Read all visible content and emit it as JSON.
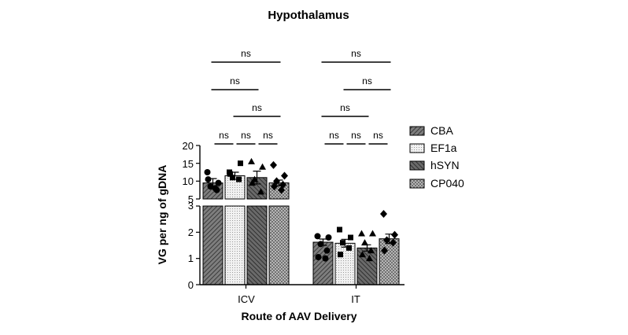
{
  "chart_data": {
    "type": "bar",
    "title": "Hypothalamus",
    "xlabel": "Route of AAV Delivery",
    "ylabel": "VG per ng of gDNA",
    "categories": [
      "ICV",
      "IT"
    ],
    "y_axis_break": true,
    "y_lower_range": [
      0,
      3
    ],
    "y_upper_range": [
      5,
      20
    ],
    "y_lower_ticks": [
      "0",
      "1",
      "2",
      "3"
    ],
    "y_upper_ticks": [
      "5",
      "10",
      "15",
      "20"
    ],
    "series": [
      {
        "name": "CBA",
        "marker": "circle",
        "values": [
          9.5,
          1.62
        ],
        "errors": [
          1.2,
          0.12
        ],
        "points": [
          [
            12.5,
            9.5,
            8.5,
            7.5,
            10.5,
            8.0
          ],
          [
            1.85,
            1.8,
            1.55,
            1.3,
            1.05,
            1.0
          ]
        ]
      },
      {
        "name": "EF1a",
        "marker": "square",
        "values": [
          11.5,
          1.58
        ],
        "errors": [
          1.0,
          0.15
        ],
        "points": [
          [
            12.5,
            15.0,
            11.0,
            10.5,
            12.0
          ],
          [
            2.1,
            1.8,
            1.6,
            1.4,
            1.15
          ]
        ]
      },
      {
        "name": "hSYN",
        "marker": "triangle",
        "values": [
          11.0,
          1.4
        ],
        "errors": [
          1.8,
          0.12
        ],
        "points": [
          [
            15.5,
            14.0,
            10.5,
            7.0,
            9.5
          ],
          [
            1.95,
            1.95,
            1.6,
            1.3,
            1.15,
            1.0
          ]
        ]
      },
      {
        "name": "CP040",
        "marker": "diamond",
        "values": [
          9.5,
          1.75
        ],
        "errors": [
          0.8,
          0.18
        ],
        "points": [
          [
            14.5,
            11.5,
            10.0,
            9.0,
            8.5,
            7.5
          ],
          [
            2.7,
            1.9,
            1.7,
            1.6,
            1.3
          ]
        ]
      }
    ],
    "significance": [
      {
        "group": "ICV",
        "from": "CBA",
        "to": "EF1a",
        "label": "ns"
      },
      {
        "group": "ICV",
        "from": "EF1a",
        "to": "hSYN",
        "label": "ns"
      },
      {
        "group": "ICV",
        "from": "hSYN",
        "to": "CP040",
        "label": "ns"
      },
      {
        "group": "ICV",
        "from": "EF1a",
        "to": "CP040",
        "label": "ns"
      },
      {
        "group": "ICV",
        "from": "CBA",
        "to": "hSYN",
        "label": "ns"
      },
      {
        "group": "ICV",
        "from": "CBA",
        "to": "CP040",
        "label": "ns"
      },
      {
        "group": "IT",
        "from": "CBA",
        "to": "EF1a",
        "label": "ns"
      },
      {
        "group": "IT",
        "from": "EF1a",
        "to": "hSYN",
        "label": "ns"
      },
      {
        "group": "IT",
        "from": "hSYN",
        "to": "CP040",
        "label": "ns"
      },
      {
        "group": "IT",
        "from": "CBA",
        "to": "hSYN",
        "label": "ns"
      },
      {
        "group": "IT",
        "from": "EF1a",
        "to": "CP040",
        "label": "ns"
      },
      {
        "group": "IT",
        "from": "CBA",
        "to": "CP040",
        "label": "ns"
      }
    ],
    "legend_position": "right"
  }
}
